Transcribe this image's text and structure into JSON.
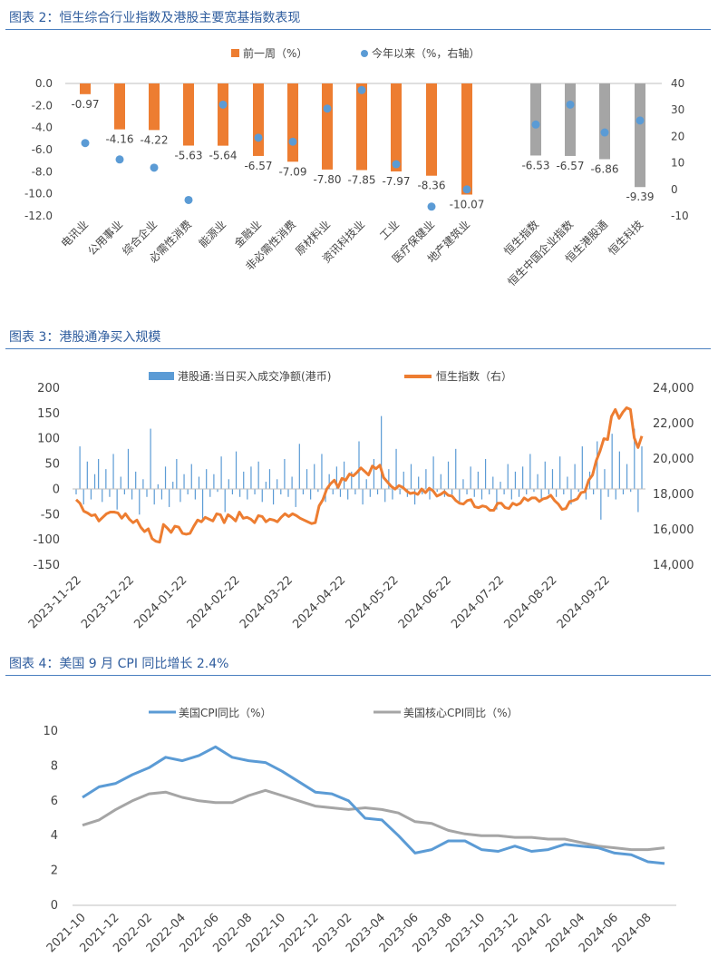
{
  "charts": [
    {
      "title": "图表 2：恒生综合行业指数及港股主要宽基指数表现",
      "chart_data": {
        "type": "bar",
        "legend": [
          "前一周（%）",
          "今年以来（%，右轴）"
        ],
        "categories": [
          "电讯业",
          "公用事业",
          "综合企业",
          "必需性消费",
          "能源业",
          "金融业",
          "非必需性消费",
          "原材料业",
          "资讯科技业",
          "工业",
          "医疗保健业",
          "地产建筑业",
          "恒生指数",
          "恒生中国企业指数",
          "恒生港股通",
          "恒生科技"
        ],
        "bar_labels": [
          "-0.97",
          "-4.16",
          "-4.22",
          "-5.63",
          "-5.64",
          "-6.57",
          "-7.09",
          "-7.80",
          "-7.85",
          "-7.97",
          "-8.36",
          "-10.07",
          "-6.53",
          "-6.57",
          "-6.86",
          "-9.39"
        ],
        "series": [
          {
            "name": "前一周（%）",
            "values": [
              -0.97,
              -4.16,
              -4.22,
              -5.63,
              -5.64,
              -6.57,
              -7.09,
              -7.8,
              -7.85,
              -7.97,
              -8.36,
              -10.07,
              -6.53,
              -6.57,
              -6.86,
              -9.39
            ]
          },
          {
            "name": "今年以来（%，右轴）",
            "values": [
              17.5,
              11.3,
              8.2,
              -4.0,
              32.0,
              19.5,
              18.0,
              30.5,
              37.5,
              9.5,
              -6.5,
              0,
              24.5,
              32.0,
              21.5,
              26.0
            ]
          }
        ],
        "ylim": [
          -12,
          0
        ],
        "ylim_right": [
          -10,
          40
        ],
        "yticks": [
          "0.0",
          "-2.0",
          "-4.0",
          "-6.0",
          "-8.0",
          "-10.0",
          "-12.0"
        ],
        "yticks_right": [
          "40",
          "30",
          "20",
          "10",
          "0",
          "-10"
        ],
        "colors": {
          "bar_index": "#ed7d31",
          "bar_broad": "#a5a5a5",
          "dot": "#5b9bd5"
        }
      }
    },
    {
      "title": "图表 3：港股通净买入规模",
      "chart_data": {
        "type": "bar+line",
        "legend": [
          "港股通:当日买入成交净额(港币)",
          "恒生指数（右）"
        ],
        "x_ticks": [
          "2023-11-22",
          "2023-12-22",
          "2024-01-22",
          "2024-02-22",
          "2024-03-22",
          "2024-04-22",
          "2024-05-22",
          "2024-06-22",
          "2024-07-22",
          "2024-08-22",
          "2024-09-22"
        ],
        "yticks": [
          "200",
          "150",
          "100",
          "50",
          "0",
          "-50",
          "-100",
          "-150"
        ],
        "yticks_right": [
          "24,000",
          "22,000",
          "20,000",
          "18,000",
          "16,000",
          "14,000"
        ],
        "ylim": [
          -150,
          200
        ],
        "ylim_right": [
          14000,
          24000
        ],
        "hsi_line": [
          17700,
          17500,
          17050,
          16950,
          16800,
          16850,
          16500,
          16700,
          16900,
          17000,
          17000,
          16950,
          16650,
          16900,
          16600,
          16400,
          16550,
          16150,
          15900,
          16050,
          15500,
          15350,
          15300,
          16300,
          16100,
          15850,
          16200,
          16150,
          15800,
          15750,
          15800,
          16200,
          16550,
          16450,
          16700,
          16600,
          16500,
          16900,
          16850,
          16400,
          16850,
          16700,
          16500,
          17000,
          16650,
          16700,
          16600,
          16400,
          16800,
          16750,
          16450,
          16600,
          16550,
          16450,
          16700,
          16900,
          16750,
          16900,
          16800,
          16650,
          16550,
          16450,
          16350,
          16400,
          17350,
          17700,
          18300,
          18600,
          18800,
          18400,
          18900,
          18800,
          19150,
          19050,
          19250,
          19500,
          19300,
          19100,
          19600,
          19450,
          19650,
          18950,
          18700,
          18450,
          18300,
          18500,
          18400,
          18200,
          18050,
          18100,
          18000,
          18300,
          18100,
          18350,
          18200,
          17900,
          18000,
          18150,
          17950,
          17900,
          17650,
          17500,
          17450,
          17650,
          17700,
          17300,
          17250,
          17350,
          17300,
          17100,
          17100,
          17500,
          17500,
          17250,
          17200,
          17500,
          17400,
          17500,
          17800,
          17650,
          17800,
          17800,
          17600,
          17750,
          17800,
          17950,
          17650,
          17450,
          17150,
          17200,
          17600,
          17650,
          17750,
          18100,
          18150,
          18800,
          19100,
          19900,
          20450,
          21150,
          21100,
          22400,
          22800,
          22300,
          22650,
          22900,
          22800,
          21200,
          20650,
          21300
        ],
        "flow_bars": [
          -10,
          85,
          -30,
          55,
          -20,
          30,
          60,
          -25,
          40,
          -15,
          70,
          -40,
          25,
          -10,
          80,
          -20,
          35,
          -50,
          20,
          -15,
          120,
          -30,
          10,
          -20,
          45,
          -35,
          15,
          60,
          -25,
          30,
          -10,
          50,
          -20,
          25,
          -60,
          40,
          -15,
          30,
          -5,
          65,
          -45,
          20,
          -10,
          75,
          -15,
          35,
          -20,
          45,
          -10,
          55,
          -25,
          15,
          40,
          -30,
          20,
          -10,
          60,
          -15,
          25,
          -35,
          90,
          -10,
          40,
          -20,
          50,
          -5,
          70,
          -25,
          30,
          -10,
          45,
          -15,
          55,
          -20,
          35,
          -10,
          95,
          -30,
          20,
          -15,
          60,
          -10,
          145,
          -25,
          40,
          -20,
          80,
          -10,
          35,
          -15,
          50,
          -30,
          25,
          -10,
          40,
          -20,
          65,
          -5,
          30,
          -15,
          55,
          -10,
          80,
          -25,
          20,
          -10,
          45,
          -15,
          35,
          -20,
          60,
          -10,
          25,
          -40,
          15,
          -10,
          50,
          -20,
          35,
          -15,
          45,
          -10,
          70,
          -5,
          30,
          -20,
          55,
          -10,
          40,
          -15,
          65,
          -10,
          25,
          -30,
          50,
          -5,
          85,
          -20,
          35,
          -10,
          95,
          -60,
          40,
          -15,
          110,
          -20,
          75,
          -10,
          50,
          -5,
          120,
          -45,
          85
        ]
      }
    },
    {
      "title": "图表 4：美国 9 月 CPI 同比增长 2.4%",
      "chart_data": {
        "type": "line",
        "legend": [
          "美国CPI同比（%）",
          "美国核心CPI同比（%）"
        ],
        "x_ticks": [
          "2021-10",
          "2021-12",
          "2022-02",
          "2022-04",
          "2022-06",
          "2022-08",
          "2022-10",
          "2022-12",
          "2023-02",
          "2023-04",
          "2023-06",
          "2023-08",
          "2023-10",
          "2023-12",
          "2024-02",
          "2024-04",
          "2024-06",
          "2024-08"
        ],
        "yticks": [
          "10",
          "8",
          "6",
          "4",
          "2",
          "0"
        ],
        "ylim": [
          0,
          10
        ],
        "series": [
          {
            "name": "美国CPI同比（%）",
            "values": [
              6.2,
              6.8,
              7.0,
              7.5,
              7.9,
              8.5,
              8.3,
              8.6,
              9.1,
              8.5,
              8.3,
              8.2,
              7.7,
              7.1,
              6.5,
              6.4,
              6.0,
              5.0,
              4.9,
              4.0,
              3.0,
              3.2,
              3.7,
              3.7,
              3.2,
              3.1,
              3.4,
              3.1,
              3.2,
              3.5,
              3.4,
              3.3,
              3.0,
              2.9,
              2.5,
              2.4
            ]
          },
          {
            "name": "美国核心CPI同比（%）",
            "values": [
              4.6,
              4.9,
              5.5,
              6.0,
              6.4,
              6.5,
              6.2,
              6.0,
              5.9,
              5.9,
              6.3,
              6.6,
              6.3,
              6.0,
              5.7,
              5.6,
              5.5,
              5.6,
              5.5,
              5.3,
              4.8,
              4.7,
              4.3,
              4.1,
              4.0,
              4.0,
              3.9,
              3.9,
              3.8,
              3.8,
              3.6,
              3.4,
              3.3,
              3.2,
              3.2,
              3.3
            ]
          }
        ],
        "colors": {
          "cpi": "#5b9bd5",
          "core": "#a5a5a5"
        }
      }
    }
  ]
}
